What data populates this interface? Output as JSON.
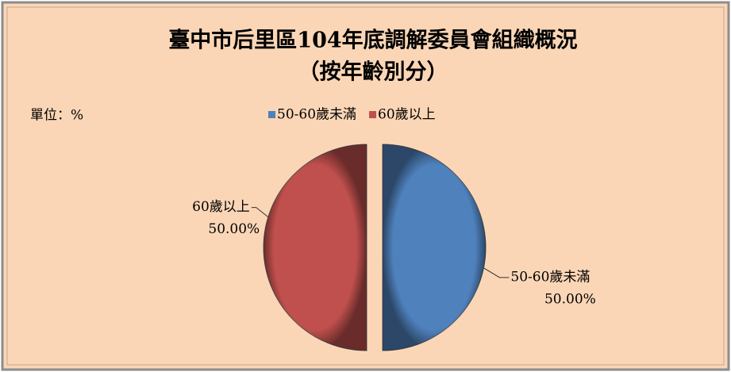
{
  "chart_data": {
    "type": "pie",
    "title": "臺中市后里區104年底調解委員會組織概況",
    "subtitle": "（按年齡別分）",
    "unit": "單位：%",
    "categories": [
      "50-60歲未滿",
      "60歲以上"
    ],
    "values": [
      50,
      50
    ],
    "value_labels": [
      "50.00%",
      "50.00%"
    ],
    "colors": [
      "#4f81bd",
      "#c0504d"
    ],
    "legend": "top"
  }
}
